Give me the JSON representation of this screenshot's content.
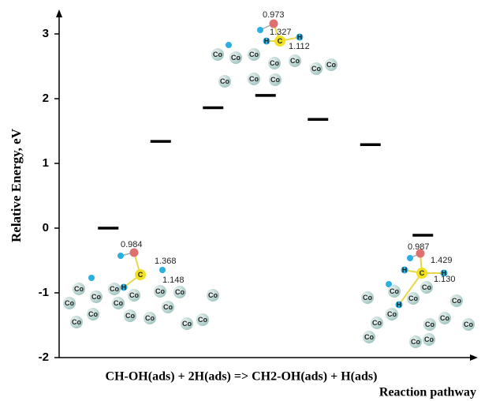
{
  "chart_data": {
    "type": "energy-levels",
    "y_label": "Relative Energy, eV",
    "x_label": "Reaction pathway",
    "caption": "CH-OH(ads) + 2H(ads) => CH2-OH(ads) + H(ads)",
    "categories": [
      null,
      null,
      null,
      null,
      null,
      null,
      null
    ],
    "values": [
      0.0,
      1.34,
      1.86,
      2.05,
      1.68,
      1.29,
      -0.11
    ],
    "color": "#000000",
    "ylim": [
      -2,
      3.25
    ],
    "yticks": [
      -2,
      -1,
      0,
      1,
      2,
      3
    ],
    "insets": [
      {
        "bonds": [
          "0.973",
          "1.327",
          "1.112"
        ],
        "atoms": [
          "C",
          "H",
          "H",
          "Co",
          "Co",
          "Co",
          "Co",
          "Co",
          "Co",
          "Co",
          "Co",
          "Co",
          "Co"
        ]
      },
      {
        "bonds": [
          "0.984",
          "1.368",
          "1.148"
        ],
        "atoms": [
          "C",
          "H",
          "Co",
          "Co",
          "Co",
          "Co",
          "Co",
          "Co",
          "Co",
          "Co",
          "Co",
          "Co",
          "Co",
          "Co",
          "Co",
          "Co",
          "Co",
          "Co"
        ]
      },
      {
        "bonds": [
          "0.987",
          "1.429",
          "1.130"
        ],
        "atoms": [
          "C",
          "H",
          "H",
          "H",
          "Co",
          "Co",
          "Co",
          "Co",
          "Co",
          "Co",
          "Co",
          "Co",
          "Co",
          "Co",
          "Co",
          "Co",
          "Co"
        ]
      }
    ]
  }
}
